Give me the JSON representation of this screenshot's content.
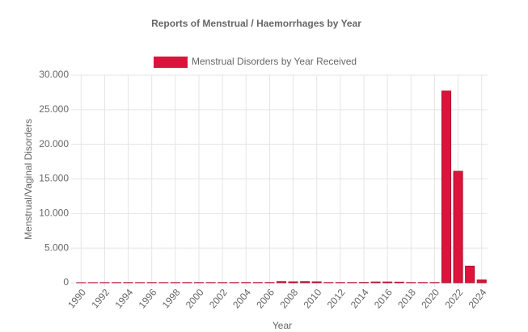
{
  "chart_data": {
    "type": "bar",
    "title": "Reports of Menstrual / Haemorrhages by Year",
    "x_label": "Year",
    "y_label": "Menstrual/Vaginal Disorders",
    "categories": [
      "1990",
      null,
      "1992",
      null,
      "1994",
      null,
      "1996",
      null,
      "1998",
      null,
      "2000",
      null,
      "2002",
      null,
      "2004",
      null,
      "2006",
      null,
      "2008",
      null,
      "2010",
      null,
      "2012",
      null,
      "2014",
      null,
      "2016",
      null,
      "2018",
      null,
      "2020",
      null,
      "2022",
      null,
      "2024"
    ],
    "series": [
      {
        "name": "Menstrual Disorders by Year Received",
        "color": "#dc143c",
        "values": [
          10,
          15,
          20,
          20,
          25,
          20,
          25,
          20,
          25,
          25,
          25,
          25,
          25,
          25,
          30,
          30,
          30,
          150,
          120,
          150,
          120,
          30,
          30,
          30,
          40,
          100,
          100,
          80,
          30,
          30,
          30,
          27700,
          16100,
          2400,
          400
        ]
      }
    ],
    "ylim": [
      0,
      30000
    ],
    "yticks": [
      0,
      {
        "value": 5000,
        "label": "5.000"
      },
      {
        "value": 10000,
        "label": "10.000"
      },
      {
        "value": 15000,
        "label": "15.000"
      },
      {
        "value": 20000,
        "label": "20.000"
      },
      {
        "value": 25000,
        "label": "25.000"
      },
      {
        "value": 30000,
        "label": "30.000"
      }
    ],
    "grid": true,
    "legend": "top"
  }
}
